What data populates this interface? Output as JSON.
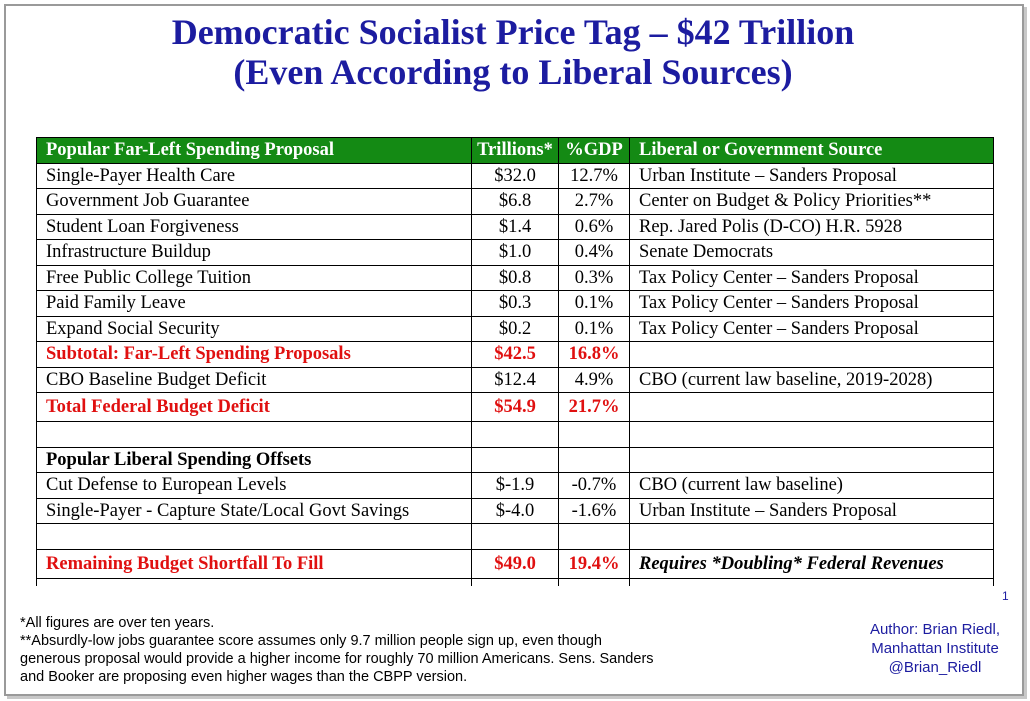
{
  "title_line1": "Democratic Socialist Price Tag – $42 Trillion",
  "title_line2": "(Even According to Liberal Sources)",
  "table": {
    "headers": [
      "Popular Far-Left Spending Proposal",
      "Trillions*",
      "%GDP",
      "Liberal or Government Source"
    ],
    "rows": [
      [
        "Single-Payer Health Care",
        "$32.0",
        "12.7%",
        "Urban Institute – Sanders Proposal"
      ],
      [
        "Government Job Guarantee",
        "$6.8",
        "2.7%",
        "Center on Budget & Policy Priorities**"
      ],
      [
        "Student Loan Forgiveness",
        "$1.4",
        "0.6%",
        "Rep. Jared Polis (D-CO) H.R. 5928"
      ],
      [
        "Infrastructure Buildup",
        "$1.0",
        "0.4%",
        "Senate Democrats"
      ],
      [
        "Free Public College Tuition",
        "$0.8",
        "0.3%",
        "Tax Policy Center – Sanders Proposal"
      ],
      [
        "Paid Family Leave",
        "$0.3",
        "0.1%",
        "Tax Policy Center – Sanders Proposal"
      ],
      [
        "Expand Social Security",
        "$0.2",
        "0.1%",
        "Tax Policy Center – Sanders Proposal"
      ],
      [
        "Subtotal: Far-Left Spending Proposals",
        "$42.5",
        "16.8%",
        ""
      ],
      [
        "CBO Baseline Budget Deficit",
        "$12.4",
        "4.9%",
        "CBO (current law baseline, 2019-2028)"
      ],
      [
        "Total Federal Budget Deficit",
        "$54.9",
        "21.7%",
        ""
      ],
      [
        "",
        "",
        "",
        ""
      ],
      [
        "Popular Liberal Spending Offsets",
        "",
        "",
        ""
      ],
      [
        "Cut Defense to European Levels",
        "$-1.9",
        "-0.7%",
        "CBO (current law baseline)"
      ],
      [
        "Single-Payer - Capture State/Local Govt Savings",
        "$-4.0",
        "-1.6%",
        "Urban Institute – Sanders Proposal"
      ],
      [
        "",
        "",
        "",
        ""
      ],
      [
        "Remaining Budget Shortfall To Fill",
        "$49.0",
        "19.4%",
        "Requires *Doubling* Federal Revenues"
      ]
    ],
    "row_styles": [
      "normal",
      "normal",
      "normal",
      "normal",
      "normal",
      "normal",
      "normal",
      "red",
      "normal",
      "red-tall",
      "normal",
      "bold",
      "normal",
      "normal",
      "normal",
      "red-tall-italic-source"
    ]
  },
  "notes": [
    "*All figures are over ten years.",
    "**Absurdly-low jobs guarantee score assumes only 9.7 million people sign up, even though",
    "generous proposal would provide a higher income for roughly 70 million Americans. Sens. Sanders",
    "and Booker are proposing even higher wages than the CBPP version."
  ],
  "author": [
    "Author: Brian Riedl,",
    "Manhattan Institute",
    "@Brian_Riedl"
  ],
  "page_number": "1",
  "colors": {
    "title": "#1c1ca0",
    "header_bg": "#148a14",
    "highlight": "#e01010"
  }
}
